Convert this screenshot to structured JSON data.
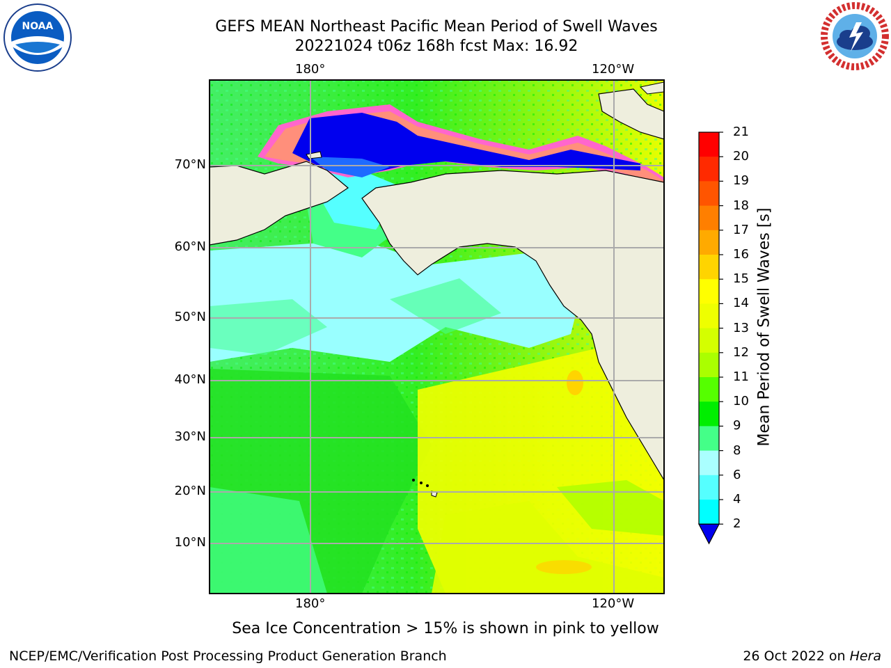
{
  "title": {
    "line1": "GEFS MEAN Northeast Pacific Mean Period of Swell Waves",
    "line2": "20221024 t06z 168h fcst   Max: 16.92"
  },
  "map": {
    "top_lon_labels": [
      "180°",
      "120°W"
    ],
    "bottom_lon_labels": [
      "180°",
      "120°W"
    ],
    "lat_labels": [
      "70°N",
      "60°N",
      "50°N",
      "40°N",
      "30°N",
      "20°N",
      "10°N"
    ]
  },
  "colorbar": {
    "label": "Mean Period of Swell Waves [s]",
    "ticks": [
      "21",
      "20",
      "19",
      "18",
      "17",
      "16",
      "15",
      "14",
      "13",
      "12",
      "11",
      "10",
      "9",
      "8",
      "6",
      "4",
      "2"
    ],
    "colors": [
      "#ff0000",
      "#ff2a00",
      "#ff5500",
      "#ff7f00",
      "#ffaa00",
      "#ffd400",
      "#ffff00",
      "#eeff00",
      "#d4ff00",
      "#aaff00",
      "#55ff00",
      "#00ee00",
      "#44ff88",
      "#aaffff",
      "#55ffff",
      "#00ffff",
      "#00aaff",
      "#0000ee"
    ]
  },
  "caption": "Sea Ice Concentration > 15% is shown in pink to yellow",
  "footer": {
    "left": "NCEP/EMC/Verification Post Processing Product Generation Branch",
    "right_prefix": "26 Oct 2022 on ",
    "right_italic": "Hera"
  },
  "logos": {
    "left": "noaa-logo",
    "right": "nws-logo"
  }
}
